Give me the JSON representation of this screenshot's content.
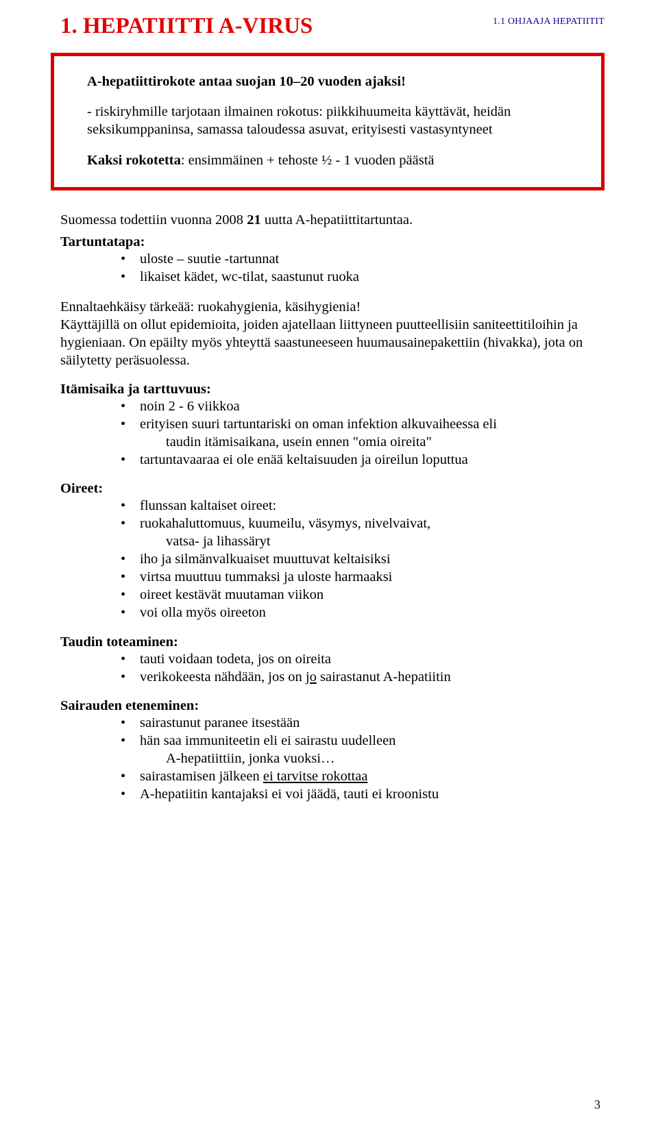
{
  "colors": {
    "title": "#e00000",
    "headerMeta": "#0d0994",
    "boxBorder": "#d80000",
    "bodyText": "#000000",
    "background": "#ffffff"
  },
  "title": "1. HEPATIITTI A-VIRUS",
  "headerMeta": "1.1 OHJAAJA HEPATIITIT",
  "box": {
    "p1_pre": "A-hepatiittirokote antaa suojan 10",
    "p1_post": "20 vuoden ajaksi!",
    "p2": "- riskiryhmille tarjotaan ilmainen rokotus: piikkihuumeita käyttävät, heidän seksikumppaninsa, samassa taloudessa asuvat, erityisesti vastasyntyneet",
    "p3_pre": "Kaksi rokotetta",
    "p3_post": ": ensimmäinen + tehoste ½ - 1 vuoden päästä"
  },
  "intro_plain": "Suomessa todettiin vuonna 2008 ",
  "intro_bold": "21",
  "intro_rest": " uutta A-hepatiittitartuntaa.",
  "sections": {
    "tartuntatapa": {
      "label": "Tartuntatapa:",
      "items": [
        "uloste – suutie -tartunnat",
        "likaiset kädet, wc-tilat, saastunut ruoka"
      ]
    },
    "ennalta": {
      "para": "Ennaltaehkäisy tärkeää: ruokahygienia, käsihygienia!\nKäyttäjillä on ollut epidemioita, joiden ajatellaan liittyneen puutteellisiin saniteettitiloihin ja hygieniaan. On epäilty myös yhteyttä saastuneeseen huumausainepakettiin (hivakka), jota on säilytetty peräsuolessa."
    },
    "itamis": {
      "label": "Itämisaika ja tarttuvuus:",
      "items": [
        {
          "text": "noin 2 - 6 viikkoa"
        },
        {
          "text": "erityisen suuri tartuntariski on oman infektion alkuvaiheessa eli",
          "sub": "taudin itämisaikana, usein ennen \"omia oireita\""
        },
        {
          "text": "tartuntavaaraa ei ole enää keltaisuuden ja oireilun loputtua"
        }
      ]
    },
    "oireet": {
      "label": "Oireet:",
      "items": [
        {
          "text": "flunssan kaltaiset oireet:"
        },
        {
          "text": "ruokahaluttomuus, kuumeilu, väsymys, nivelvaivat,",
          "sub": "vatsa- ja lihassäryt"
        },
        {
          "text": "iho ja silmänvalkuaiset muuttuvat keltaisiksi"
        },
        {
          "text": "virtsa muuttuu tummaksi ja uloste harmaaksi"
        },
        {
          "text": "oireet kestävät muutaman viikon"
        },
        {
          "text": "voi olla myös oireeton"
        }
      ]
    },
    "toteaminen": {
      "label": "Taudin toteaminen:",
      "items": [
        {
          "text": "tauti voidaan todeta, jos on oireita"
        },
        {
          "prefix": "verikokeesta nähdään, jos on ",
          "underlined": "jo",
          "suffix": " sairastanut A-hepatiitin"
        }
      ]
    },
    "eteneminen": {
      "label": "Sairauden eteneminen:",
      "items": [
        {
          "text": "sairastunut paranee itsestään"
        },
        {
          "text": "hän saa immuniteetin eli ei sairastu uudelleen",
          "sub": "A-hepatiittiin, jonka vuoksi…"
        },
        {
          "prefix": "sairastamisen jälkeen ",
          "underlined": "ei tarvitse rokottaa"
        },
        {
          "text": "A-hepatiitin kantajaksi ei voi jäädä, tauti ei kroonistu"
        }
      ]
    }
  },
  "pageNumber": "3"
}
